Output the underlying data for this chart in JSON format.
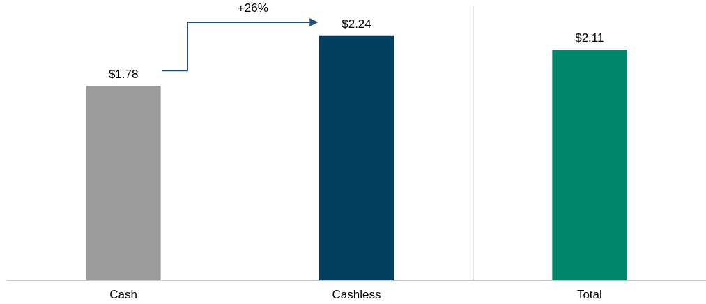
{
  "chart_data": {
    "type": "bar",
    "categories": [
      "Cash",
      "Cashless",
      "Total"
    ],
    "values": [
      1.78,
      2.24,
      2.11
    ],
    "colors": [
      "#9b9b9b",
      "#003f5f",
      "#00876a"
    ],
    "value_labels": [
      "$1.78",
      "$2.24",
      "$2.11"
    ],
    "annotations": [
      "+26%"
    ],
    "grid": false
  }
}
